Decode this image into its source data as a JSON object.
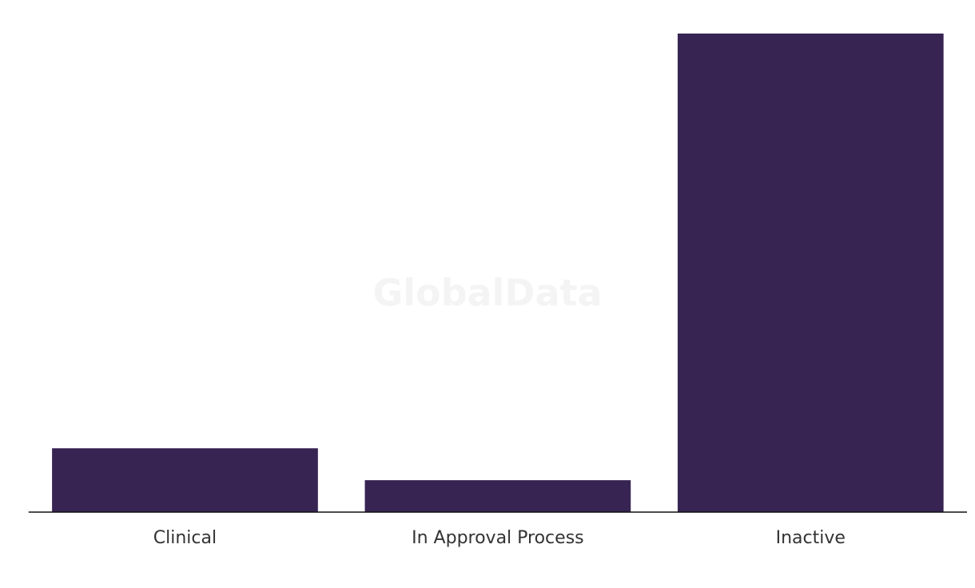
{
  "chart_data": {
    "type": "bar",
    "watermark": "GlobalData",
    "categories": [
      "Clinical",
      "In Approval Process",
      "Inactive"
    ],
    "values": [
      2,
      1,
      15
    ],
    "color": "#372453"
  }
}
